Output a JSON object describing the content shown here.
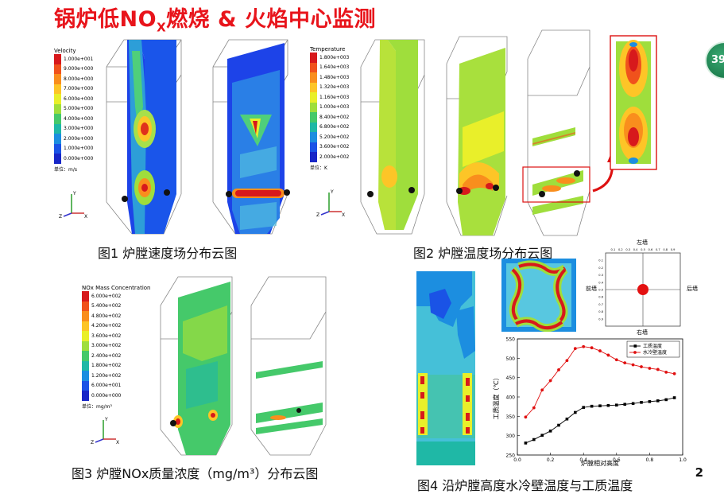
{
  "title": {
    "main": "锅炉低NO",
    "sub": "X",
    "rest": "燃烧  &  火焰中心监测"
  },
  "slide_number": "2",
  "badge": "39",
  "captions": {
    "fig1": "图1 炉膛速度场分布云图",
    "fig2": "图2 炉膛温度场分布云图",
    "fig3": "图3 炉膛NOx质量浓度（mg/m³）分布云图",
    "fig4": "图4 沿炉膛高度水冷壁温度与工质温度"
  },
  "legend_velocity": {
    "title": "Velocity",
    "labels": [
      "1.000e+001",
      "9.000e+000",
      "8.000e+000",
      "7.000e+000",
      "6.000e+000",
      "5.000e+000",
      "4.000e+000",
      "3.000e+000",
      "2.000e+000",
      "1.000e+000",
      "0.000e+000"
    ],
    "unit": "单位：m/s"
  },
  "legend_temperature": {
    "title": "Temperature",
    "labels": [
      "1.800e+003",
      "1.640e+003",
      "1.480e+003",
      "1.320e+003",
      "1.160e+003",
      "1.000e+003",
      "8.400e+002",
      "6.800e+002",
      "5.200e+002",
      "3.600e+002",
      "2.000e+002"
    ],
    "unit": "单位：K"
  },
  "legend_nox": {
    "title": "NOx Mass Concentration",
    "labels": [
      "6.000e+002",
      "5.400e+002",
      "4.800e+002",
      "4.200e+002",
      "3.600e+002",
      "3.000e+002",
      "2.400e+002",
      "1.800e+002",
      "1.200e+002",
      "6.000e+001",
      "0.000e+000"
    ],
    "unit": "单位：mg/m³"
  },
  "legend_colors": [
    "#d7191c",
    "#f0521c",
    "#f98e1d",
    "#fdc527",
    "#e9ef2a",
    "#9fde3c",
    "#45c96a",
    "#1fb8a6",
    "#1c8ee0",
    "#1a53e6",
    "#1726c7"
  ],
  "flame_center": {
    "top": "左墙",
    "bottom": "右墙",
    "left": "前墙",
    "right": "后墙",
    "ticks": [
      "0.1",
      "0.2",
      "0.3",
      "0.4",
      "0.5",
      "0.6",
      "0.7",
      "0.8",
      "0.9"
    ],
    "center": [
      0.5,
      0.5
    ]
  },
  "axis_labels": {
    "x": "X",
    "y": "Y",
    "z": "Z"
  },
  "chart_data": {
    "type": "line",
    "xlabel": "炉膛相对高度",
    "ylabel": "工质温度（℃）",
    "xlim": [
      0,
      1.0
    ],
    "ylim": [
      250,
      550
    ],
    "xticks": [
      "0.0",
      "0.2",
      "0.4",
      "0.6",
      "0.8",
      "1.0"
    ],
    "yticks": [
      "250",
      "300",
      "350",
      "400",
      "450",
      "500",
      "550"
    ],
    "legend_position": "top-right",
    "series": [
      {
        "name": "工质温度",
        "color": "#000000",
        "x": [
          0.05,
          0.1,
          0.15,
          0.2,
          0.25,
          0.3,
          0.35,
          0.4,
          0.45,
          0.5,
          0.55,
          0.6,
          0.65,
          0.7,
          0.75,
          0.8,
          0.85,
          0.9,
          0.95
        ],
        "values": [
          281,
          290,
          301,
          312,
          327,
          343,
          360,
          373,
          376,
          377,
          378,
          379,
          381,
          383,
          386,
          388,
          390,
          393,
          398
        ]
      },
      {
        "name": "水冷壁温度",
        "color": "#e01010",
        "x": [
          0.05,
          0.1,
          0.15,
          0.2,
          0.25,
          0.3,
          0.35,
          0.4,
          0.45,
          0.5,
          0.55,
          0.6,
          0.65,
          0.7,
          0.75,
          0.8,
          0.85,
          0.9,
          0.95
        ],
        "values": [
          348,
          372,
          418,
          442,
          470,
          494,
          525,
          530,
          527,
          519,
          508,
          496,
          488,
          483,
          478,
          474,
          471,
          464,
          460
        ]
      }
    ]
  }
}
